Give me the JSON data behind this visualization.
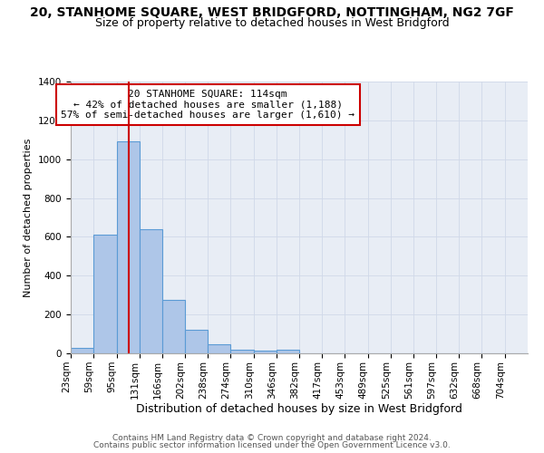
{
  "title1": "20, STANHOME SQUARE, WEST BRIDGFORD, NOTTINGHAM, NG2 7GF",
  "title2": "Size of property relative to detached houses in West Bridgford",
  "xlabel": "Distribution of detached houses by size in West Bridgford",
  "ylabel": "Number of detached properties",
  "bin_edges": [
    23,
    59,
    95,
    131,
    166,
    202,
    238,
    274,
    310,
    346,
    382,
    417,
    453,
    489,
    525,
    561,
    597,
    632,
    668,
    704,
    740
  ],
  "bar_heights": [
    30,
    610,
    1090,
    640,
    275,
    120,
    45,
    20,
    15,
    20,
    0,
    0,
    0,
    0,
    0,
    0,
    0,
    0,
    0,
    0
  ],
  "bar_color": "#aec6e8",
  "bar_edge_color": "#5b9bd5",
  "property_size": 114,
  "red_line_color": "#cc0000",
  "annotation_line1": "20 STANHOME SQUARE: 114sqm",
  "annotation_line2": "← 42% of detached houses are smaller (1,188)",
  "annotation_line3": "57% of semi-detached houses are larger (1,610) →",
  "annotation_box_color": "#cc0000",
  "ylim": [
    0,
    1400
  ],
  "yticks": [
    0,
    200,
    400,
    600,
    800,
    1000,
    1200,
    1400
  ],
  "grid_color": "#d0d8e8",
  "bg_color": "#e8edf5",
  "footer1": "Contains HM Land Registry data © Crown copyright and database right 2024.",
  "footer2": "Contains public sector information licensed under the Open Government Licence v3.0.",
  "title1_fontsize": 10,
  "title2_fontsize": 9,
  "xlabel_fontsize": 9,
  "ylabel_fontsize": 8,
  "tick_fontsize": 7.5,
  "annotation_fontsize": 8,
  "footer_fontsize": 6.5
}
